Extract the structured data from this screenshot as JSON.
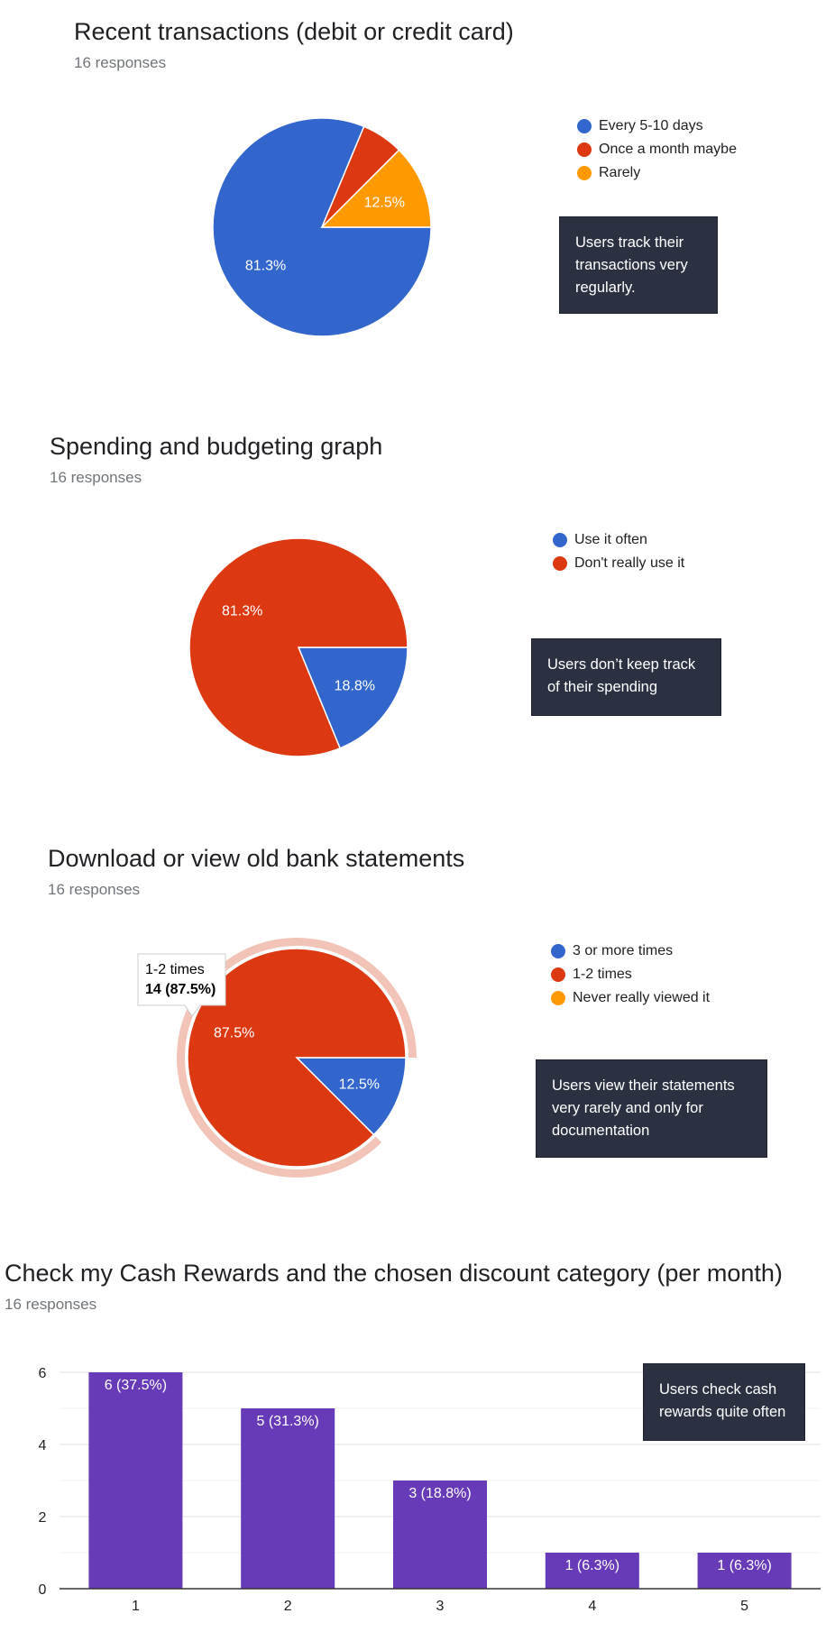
{
  "chart_data": [
    {
      "type": "pie",
      "title": "Recent transactions (debit or credit card)",
      "subtitle": "16 responses",
      "categories": [
        "Every 5-10 days",
        "Once a month maybe",
        "Rarely"
      ],
      "values": [
        81.3,
        6.2,
        12.5
      ],
      "colors": [
        "#3366cc",
        "#dc3912",
        "#ff9900"
      ],
      "data_labels": [
        "81.3%",
        "",
        "12.5%"
      ],
      "legend_position": "right",
      "annotation": "Users track their transactions very regularly."
    },
    {
      "type": "pie",
      "title": "Spending and budgeting graph",
      "subtitle": "16 responses",
      "categories": [
        "Use it often",
        "Don't really use it"
      ],
      "values": [
        18.8,
        81.3
      ],
      "colors": [
        "#3366cc",
        "#dc3912"
      ],
      "data_labels": [
        "18.8%",
        "81.3%"
      ],
      "legend_position": "right",
      "annotation": "Users don’t keep track of their spending"
    },
    {
      "type": "pie",
      "title": "Download or view old bank statements",
      "subtitle": "16 responses",
      "categories": [
        "3 or more times",
        "1-2 times",
        "Never really viewed it"
      ],
      "values": [
        12.5,
        87.5,
        0
      ],
      "colors": [
        "#3366cc",
        "#dc3912",
        "#ff9900"
      ],
      "data_labels": [
        "12.5%",
        "87.5%",
        ""
      ],
      "highlighted_slice": "1-2 times",
      "tooltip": {
        "label": "1-2 times",
        "value": "14 (87.5%)"
      },
      "legend_position": "right",
      "annotation": "Users view their statements very rarely and only for documentation"
    },
    {
      "type": "bar",
      "title": "Check my Cash Rewards and the chosen discount category (per month)",
      "subtitle": "16 responses",
      "categories": [
        "1",
        "2",
        "3",
        "4",
        "5"
      ],
      "values": [
        6,
        5,
        3,
        1,
        1
      ],
      "data_labels": [
        "6 (37.5%)",
        "5 (31.3%)",
        "3 (18.8%)",
        "1 (6.3%)",
        "1 (6.3%)"
      ],
      "y_ticks": [
        "0",
        "2",
        "4",
        "6"
      ],
      "ylim": [
        0,
        6
      ],
      "color": "#673ab7",
      "grid": true,
      "annotation": "Users check cash rewards quite often"
    }
  ]
}
